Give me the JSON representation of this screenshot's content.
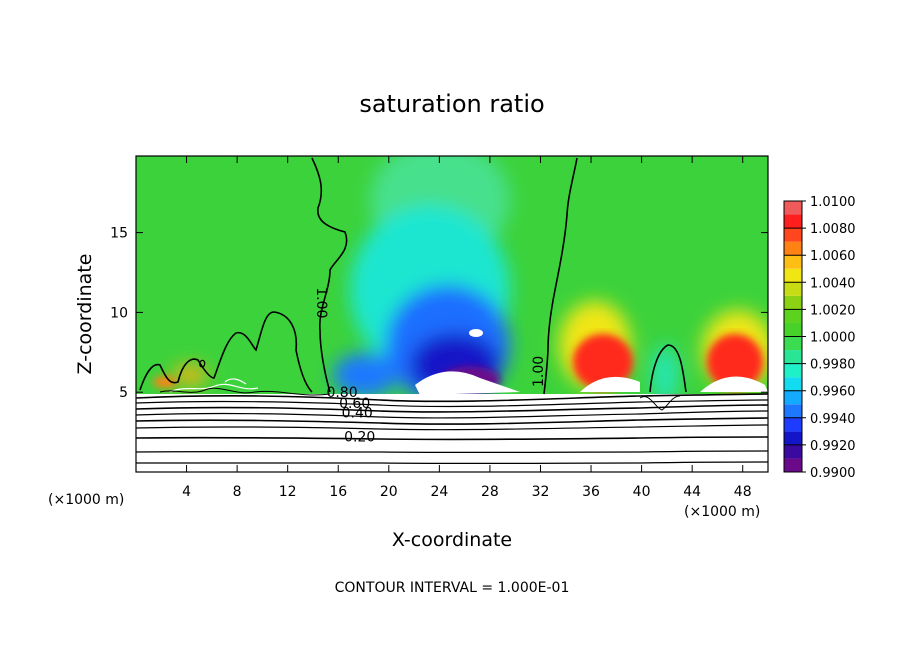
{
  "chart_data": {
    "type": "heatmap",
    "title": "saturation ratio",
    "xlabel": "X-coordinate",
    "ylabel": "Z-coordinate",
    "x_unit": "(×1000 m)",
    "z_unit": "(×1000 m)",
    "xlim": [
      0,
      50
    ],
    "ylim": [
      0,
      19.8
    ],
    "x_ticks": [
      4,
      8,
      12,
      16,
      20,
      24,
      28,
      32,
      36,
      40,
      44,
      48
    ],
    "x_tick_labels": [
      "4",
      "8",
      "12",
      "16",
      "20",
      "24",
      "28",
      "32",
      "36",
      "40",
      "44",
      "48"
    ],
    "y_ticks": [
      5,
      10,
      15
    ],
    "y_tick_labels": [
      "5",
      "10",
      "15"
    ],
    "colorbar": {
      "range": [
        0.99,
        1.01
      ],
      "levels": [
        0.99,
        0.991,
        0.992,
        0.993,
        0.994,
        0.995,
        0.996,
        0.997,
        0.998,
        0.999,
        1.0,
        1.001,
        1.002,
        1.003,
        1.004,
        1.005,
        1.006,
        1.007,
        1.008,
        1.009,
        1.01
      ],
      "tick_values": [
        0.99,
        0.992,
        0.994,
        0.996,
        0.998,
        1.0,
        1.002,
        1.004,
        1.006,
        1.008,
        1.01
      ],
      "tick_labels": [
        "0.9900",
        "0.9920",
        "0.9940",
        "0.9960",
        "0.9980",
        "1.0000",
        "1.0020",
        "1.0040",
        "1.0060",
        "1.0080",
        "1.0100"
      ],
      "colors": [
        "#6a0a8a",
        "#3a0aa0",
        "#1414c8",
        "#1e3cff",
        "#1e78ff",
        "#14aaff",
        "#14dcf0",
        "#1ef0c8",
        "#28e696",
        "#3cdc50",
        "#46d228",
        "#5ad21e",
        "#8cd214",
        "#c8dc14",
        "#f0e614",
        "#ffbe14",
        "#ff8214",
        "#ff461e",
        "#ff1e1e",
        "#f05a5a",
        "#f09696"
      ]
    },
    "contour_levels": [
      0.1,
      0.2,
      0.3,
      0.4,
      0.5,
      0.6,
      0.7,
      0.8,
      0.9,
      1.0
    ],
    "contour_labels": [
      {
        "text": "1.00",
        "x": 14.3,
        "z": 10.6
      },
      {
        "text": "1.00",
        "x": 32.2,
        "z": 6.3
      },
      {
        "text": "0.80",
        "x": 16.3,
        "z": 4.7
      },
      {
        "text": "0.60",
        "x": 17.3,
        "z": 4.0
      },
      {
        "text": "0.40",
        "x": 17.5,
        "z": 3.4
      },
      {
        "text": "0.20",
        "x": 17.7,
        "z": 1.9
      }
    ],
    "contour_interval_text": "CONTOUR INTERVAL = 1.000E-01"
  }
}
